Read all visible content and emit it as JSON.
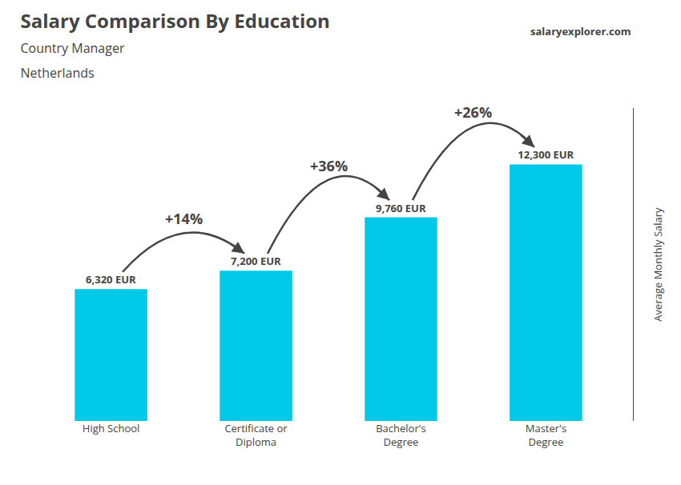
{
  "chart_data": {
    "type": "bar",
    "title": "Salary Comparison By Education",
    "subtitle": [
      "Country Manager",
      "Netherlands"
    ],
    "note": "salaryexplorer.com",
    "ylabel": "Average Monthly Salary",
    "categories": [
      "High School",
      "Certificate or\nDiploma",
      "Bachelor's\nDegree",
      "Master's\nDegree"
    ],
    "values": [
      6320,
      7200,
      9760,
      12300
    ],
    "value_labels": [
      "6,320 EUR",
      "7,200 EUR",
      "9,760 EUR",
      "12,300 EUR"
    ],
    "data_labels": true,
    "color": "#00c8e8",
    "annotations": [
      "+14%",
      "+36%",
      "+26%"
    ],
    "ylim": [
      0,
      15000
    ],
    "grid": false,
    "tick_labels": "x"
  }
}
